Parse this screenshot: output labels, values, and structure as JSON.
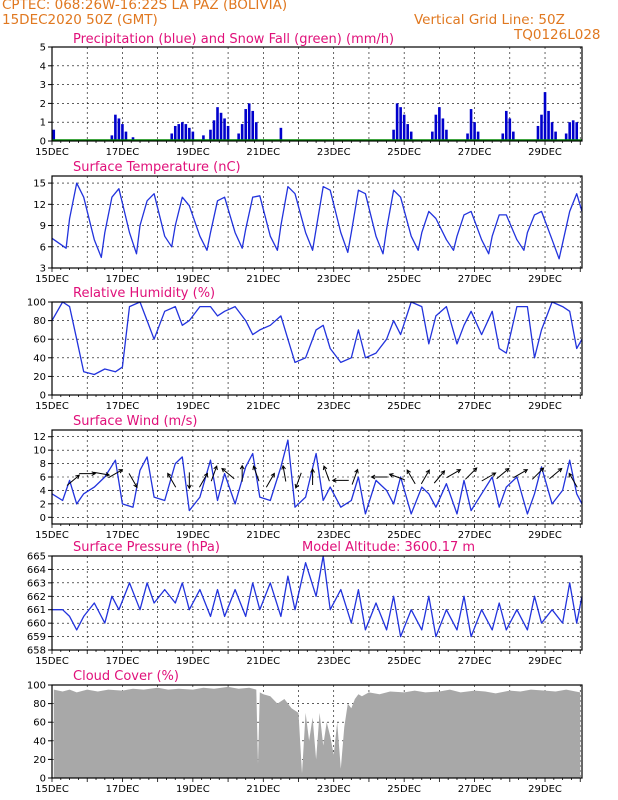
{
  "header": {
    "line1": "CPTEC:   068:26W-16:22S   LA PAZ (BOLIVIA)",
    "line2": "15DEC2020 50Z (GMT)",
    "grid_note": "Vertical Grid Line: 50Z",
    "code": "TQ0126L028"
  },
  "colors": {
    "precip": "#0000cc",
    "snow": "#008800",
    "line": "#2233dd",
    "cloud": "#a8a8a8",
    "title": "#e0107a",
    "header": "#e07820"
  },
  "chart_data": [
    {
      "id": "precip",
      "type": "bar",
      "title": "Precipitation (blue) and Snow Fall (green) (mm/h)",
      "ylim": [
        0,
        5
      ],
      "yticks": [
        0,
        1,
        2,
        3,
        4,
        5
      ],
      "xlabels": [
        "15DEC",
        "17DEC",
        "19DEC",
        "21DEC",
        "23DEC",
        "25DEC",
        "27DEC",
        "29DEC"
      ],
      "x_days": [
        15,
        17,
        19,
        21,
        23,
        25,
        27,
        29
      ],
      "xlim_days": [
        15,
        30.05
      ],
      "series": [
        {
          "name": "Precipitation",
          "points": [
            [
              15.05,
              0.6
            ],
            [
              16.7,
              0.3
            ],
            [
              16.8,
              1.4
            ],
            [
              16.9,
              1.2
            ],
            [
              17.0,
              0.9
            ],
            [
              17.1,
              0.5
            ],
            [
              17.3,
              0.2
            ],
            [
              18.4,
              0.4
            ],
            [
              18.5,
              0.8
            ],
            [
              18.6,
              0.9
            ],
            [
              18.7,
              1.0
            ],
            [
              18.8,
              0.9
            ],
            [
              18.9,
              0.7
            ],
            [
              19.0,
              0.5
            ],
            [
              19.3,
              0.3
            ],
            [
              19.5,
              0.6
            ],
            [
              19.6,
              1.1
            ],
            [
              19.7,
              1.8
            ],
            [
              19.8,
              1.5
            ],
            [
              19.9,
              1.2
            ],
            [
              20.0,
              0.8
            ],
            [
              20.3,
              0.4
            ],
            [
              20.4,
              0.9
            ],
            [
              20.5,
              1.7
            ],
            [
              20.6,
              2.0
            ],
            [
              20.7,
              1.6
            ],
            [
              20.8,
              1.0
            ],
            [
              21.5,
              0.7
            ],
            [
              24.7,
              0.6
            ],
            [
              24.8,
              2.0
            ],
            [
              24.9,
              1.8
            ],
            [
              25.0,
              1.4
            ],
            [
              25.1,
              0.9
            ],
            [
              25.2,
              0.5
            ],
            [
              25.8,
              0.5
            ],
            [
              25.9,
              1.4
            ],
            [
              26.0,
              1.8
            ],
            [
              26.1,
              1.2
            ],
            [
              26.2,
              0.6
            ],
            [
              26.8,
              0.4
            ],
            [
              26.9,
              1.7
            ],
            [
              27.0,
              1.0
            ],
            [
              27.1,
              0.5
            ],
            [
              27.8,
              0.4
            ],
            [
              27.9,
              1.6
            ],
            [
              28.0,
              1.2
            ],
            [
              28.1,
              0.5
            ],
            [
              28.8,
              0.8
            ],
            [
              28.9,
              1.4
            ],
            [
              29.0,
              2.6
            ],
            [
              29.1,
              1.6
            ],
            [
              29.2,
              1.0
            ],
            [
              29.3,
              0.5
            ],
            [
              29.6,
              0.4
            ],
            [
              29.7,
              1.0
            ],
            [
              29.8,
              1.1
            ],
            [
              29.9,
              1.0
            ]
          ]
        },
        {
          "name": "Snow Fall",
          "points": []
        }
      ]
    },
    {
      "id": "temp",
      "type": "line",
      "title": "Surface Temperature (nC)",
      "ylim": [
        3,
        16
      ],
      "yticks": [
        3,
        6,
        9,
        12,
        15
      ],
      "xlabels": [
        "15DEC",
        "17DEC",
        "19DEC",
        "21DEC",
        "23DEC",
        "25DEC",
        "27DEC",
        "29DEC"
      ],
      "x_days": [
        15,
        17,
        19,
        21,
        23,
        25,
        27,
        29
      ],
      "xlim_days": [
        15,
        30.05
      ],
      "x": [
        15.0,
        15.4,
        15.5,
        15.7,
        15.9,
        16.2,
        16.4,
        16.5,
        16.7,
        16.9,
        17.2,
        17.4,
        17.5,
        17.7,
        17.9,
        18.2,
        18.4,
        18.5,
        18.7,
        18.9,
        19.2,
        19.4,
        19.5,
        19.7,
        19.9,
        20.2,
        20.4,
        20.5,
        20.7,
        20.9,
        21.2,
        21.4,
        21.5,
        21.7,
        21.9,
        22.2,
        22.4,
        22.5,
        22.7,
        22.9,
        23.2,
        23.4,
        23.5,
        23.7,
        23.9,
        24.2,
        24.4,
        24.5,
        24.7,
        24.9,
        25.2,
        25.4,
        25.5,
        25.7,
        25.9,
        26.2,
        26.4,
        26.5,
        26.7,
        26.9,
        27.2,
        27.4,
        27.5,
        27.7,
        27.9,
        28.2,
        28.4,
        28.5,
        28.7,
        28.9,
        29.2,
        29.4,
        29.5,
        29.7,
        29.9,
        30.05
      ],
      "y": [
        7.2,
        5.8,
        10.0,
        15.0,
        13.0,
        7.0,
        4.5,
        8.0,
        13.0,
        14.2,
        8.0,
        5.0,
        9.0,
        12.5,
        13.5,
        7.5,
        6.0,
        9.0,
        13.0,
        11.8,
        7.5,
        5.5,
        8.0,
        12.5,
        13.0,
        8.0,
        5.8,
        8.5,
        13.0,
        13.2,
        7.5,
        5.5,
        9.0,
        14.5,
        13.5,
        8.0,
        5.5,
        8.5,
        14.5,
        14.0,
        8.0,
        5.2,
        8.0,
        14.0,
        13.5,
        7.5,
        5.0,
        8.5,
        14.0,
        13.0,
        7.5,
        5.5,
        8.0,
        11.0,
        10.0,
        7.0,
        5.5,
        7.5,
        10.5,
        11.0,
        7.0,
        5.0,
        7.5,
        10.5,
        10.5,
        7.0,
        5.5,
        8.0,
        10.5,
        11.0,
        7.0,
        4.3,
        6.5,
        11.0,
        13.5,
        11.0
      ]
    },
    {
      "id": "rh",
      "type": "line",
      "title": "Relative Humidity (%)",
      "ylim": [
        0,
        100
      ],
      "yticks": [
        0,
        20,
        40,
        60,
        80,
        100
      ],
      "xlabels": [
        "15DEC",
        "17DEC",
        "19DEC",
        "21DEC",
        "23DEC",
        "25DEC",
        "27DEC",
        "29DEC"
      ],
      "x_days": [
        15,
        17,
        19,
        21,
        23,
        25,
        27,
        29
      ],
      "xlim_days": [
        15,
        30.05
      ],
      "x": [
        15.0,
        15.3,
        15.5,
        15.7,
        15.9,
        16.2,
        16.5,
        16.8,
        17.0,
        17.2,
        17.5,
        17.7,
        17.9,
        18.2,
        18.5,
        18.7,
        18.9,
        19.2,
        19.5,
        19.7,
        19.9,
        20.2,
        20.5,
        20.7,
        20.9,
        21.2,
        21.5,
        21.7,
        21.9,
        22.2,
        22.5,
        22.7,
        22.9,
        23.2,
        23.5,
        23.7,
        23.9,
        24.2,
        24.5,
        24.7,
        24.9,
        25.2,
        25.5,
        25.7,
        25.9,
        26.2,
        26.5,
        26.7,
        26.9,
        27.2,
        27.5,
        27.7,
        27.9,
        28.2,
        28.5,
        28.7,
        28.9,
        29.2,
        29.5,
        29.7,
        29.9,
        30.05
      ],
      "y": [
        80,
        100,
        95,
        60,
        25,
        22,
        28,
        25,
        30,
        95,
        100,
        80,
        60,
        90,
        95,
        75,
        80,
        95,
        95,
        85,
        90,
        95,
        80,
        65,
        70,
        75,
        85,
        60,
        35,
        40,
        70,
        75,
        50,
        35,
        40,
        70,
        40,
        45,
        60,
        80,
        65,
        100,
        95,
        55,
        85,
        95,
        55,
        75,
        90,
        65,
        90,
        50,
        45,
        95,
        95,
        40,
        70,
        100,
        95,
        90,
        50,
        60
      ]
    },
    {
      "id": "wind",
      "type": "line",
      "title": "Surface Wind (m/s)",
      "ylim": [
        -1,
        13
      ],
      "yticks": [
        0,
        2,
        4,
        6,
        8,
        10,
        12
      ],
      "xlabels": [
        "15DEC",
        "17DEC",
        "19DEC",
        "21DEC",
        "23DEC",
        "25DEC",
        "27DEC",
        "29DEC"
      ],
      "x_days": [
        15,
        17,
        19,
        21,
        23,
        25,
        27,
        29
      ],
      "xlim_days": [
        15,
        30.05
      ],
      "x": [
        15.0,
        15.3,
        15.5,
        15.7,
        15.9,
        16.2,
        16.5,
        16.8,
        17.0,
        17.3,
        17.5,
        17.7,
        17.9,
        18.2,
        18.5,
        18.7,
        18.9,
        19.2,
        19.5,
        19.7,
        19.9,
        20.2,
        20.5,
        20.7,
        20.9,
        21.2,
        21.5,
        21.7,
        21.9,
        22.2,
        22.5,
        22.7,
        22.9,
        23.2,
        23.5,
        23.7,
        23.9,
        24.2,
        24.5,
        24.7,
        24.9,
        25.2,
        25.5,
        25.7,
        25.9,
        26.2,
        26.5,
        26.7,
        26.9,
        27.2,
        27.5,
        27.7,
        27.9,
        28.2,
        28.5,
        28.7,
        28.9,
        29.2,
        29.5,
        29.7,
        29.9,
        30.05
      ],
      "y": [
        3.5,
        2.5,
        5.5,
        2.0,
        3.5,
        4.5,
        6.0,
        8.5,
        2.0,
        1.5,
        7.0,
        9.0,
        3.0,
        2.5,
        8.0,
        9.0,
        1.0,
        3.0,
        8.5,
        2.5,
        6.5,
        2.0,
        7.5,
        9.5,
        3.0,
        2.5,
        7.5,
        11.5,
        1.5,
        3.0,
        9.5,
        2.5,
        4.5,
        1.5,
        2.5,
        6.0,
        0.5,
        5.5,
        4.0,
        2.0,
        6.0,
        0.5,
        4.5,
        3.5,
        1.5,
        5.0,
        0.5,
        5.5,
        1.0,
        3.5,
        6.0,
        1.5,
        4.5,
        6.0,
        0.5,
        3.5,
        7.5,
        2.0,
        4.0,
        8.5,
        3.5,
        2.0
      ],
      "arrows": [
        [
          15.6,
          5.5,
          -40
        ],
        [
          16.0,
          6.5,
          0
        ],
        [
          16.4,
          6.5,
          10
        ],
        [
          16.8,
          6.5,
          -30
        ],
        [
          17.3,
          5.5,
          60
        ],
        [
          18.4,
          5.5,
          -120
        ],
        [
          18.9,
          5.5,
          90
        ],
        [
          19.3,
          5.5,
          -60
        ],
        [
          19.6,
          6.5,
          -70
        ],
        [
          20.0,
          6.5,
          -140
        ],
        [
          20.4,
          6.5,
          -90
        ],
        [
          20.8,
          6.5,
          -110
        ],
        [
          21.2,
          5.5,
          -60
        ],
        [
          21.6,
          6.5,
          -100
        ],
        [
          22.0,
          5.5,
          110
        ],
        [
          22.4,
          6.0,
          -90
        ],
        [
          22.8,
          6.5,
          -110
        ],
        [
          23.2,
          5.5,
          180
        ],
        [
          23.6,
          6.0,
          -70
        ],
        [
          24.3,
          6.0,
          180
        ],
        [
          24.8,
          6.0,
          -160
        ],
        [
          25.2,
          6.0,
          -120
        ],
        [
          25.6,
          6.0,
          -60
        ],
        [
          26.0,
          6.0,
          -50
        ],
        [
          26.4,
          6.5,
          -30
        ],
        [
          26.9,
          6.5,
          -45
        ],
        [
          27.4,
          6.0,
          -30
        ],
        [
          27.8,
          6.5,
          -40
        ],
        [
          28.3,
          6.5,
          -30
        ],
        [
          28.8,
          6.5,
          -45
        ],
        [
          29.3,
          6.5,
          -40
        ],
        [
          29.8,
          5.5,
          -120
        ]
      ]
    },
    {
      "id": "pressure",
      "type": "line",
      "title": "Surface Pressure (hPa)",
      "subtitle": "Model Altitude: 3600.17 m",
      "ylim": [
        658,
        665
      ],
      "yticks": [
        658,
        659,
        660,
        661,
        662,
        663,
        664,
        665
      ],
      "xlabels": [
        "15DEC",
        "17DEC",
        "19DEC",
        "21DEC",
        "23DEC",
        "25DEC",
        "27DEC",
        "29DEC"
      ],
      "x_days": [
        15,
        17,
        19,
        21,
        23,
        25,
        27,
        29
      ],
      "xlim_days": [
        15,
        30.05
      ],
      "x": [
        15.0,
        15.3,
        15.5,
        15.7,
        15.9,
        16.2,
        16.5,
        16.7,
        16.9,
        17.2,
        17.5,
        17.7,
        17.9,
        18.2,
        18.5,
        18.7,
        18.9,
        19.2,
        19.5,
        19.7,
        19.9,
        20.2,
        20.5,
        20.7,
        20.9,
        21.2,
        21.5,
        21.7,
        21.9,
        22.2,
        22.5,
        22.7,
        22.9,
        23.2,
        23.5,
        23.7,
        23.9,
        24.2,
        24.5,
        24.7,
        24.9,
        25.2,
        25.5,
        25.7,
        25.9,
        26.2,
        26.5,
        26.7,
        26.9,
        27.2,
        27.5,
        27.7,
        27.9,
        28.2,
        28.5,
        28.7,
        28.9,
        29.2,
        29.5,
        29.7,
        29.9,
        30.05
      ],
      "y": [
        661.0,
        661.0,
        660.5,
        659.5,
        660.5,
        661.5,
        660.0,
        662.0,
        661.0,
        663.0,
        661.0,
        663.0,
        661.5,
        662.5,
        661.5,
        663.0,
        661.0,
        662.5,
        660.5,
        662.5,
        660.5,
        662.5,
        660.5,
        663.0,
        661.0,
        663.0,
        660.5,
        663.5,
        661.0,
        664.5,
        662.0,
        665.0,
        661.0,
        662.5,
        660.0,
        662.5,
        659.5,
        661.5,
        659.5,
        662.0,
        659.0,
        661.0,
        659.5,
        662.0,
        659.0,
        661.0,
        659.5,
        662.0,
        659.0,
        661.0,
        659.5,
        661.5,
        659.5,
        661.0,
        659.5,
        662.0,
        660.0,
        661.0,
        660.0,
        663.0,
        660.0,
        662.0
      ]
    },
    {
      "id": "cloud",
      "type": "area",
      "title": "Cloud Cover (%)",
      "ylim": [
        0,
        100
      ],
      "yticks": [
        0,
        20,
        40,
        60,
        80,
        100
      ],
      "xlabels": [
        "15DEC",
        "17DEC",
        "19DEC",
        "21DEC",
        "23DEC",
        "25DEC",
        "27DEC",
        "29DEC"
      ],
      "x_days": [
        15,
        17,
        19,
        21,
        23,
        25,
        27,
        29
      ],
      "xlim_days": [
        15,
        30.05
      ],
      "x": [
        15.05,
        15.3,
        15.5,
        15.7,
        16.0,
        16.3,
        16.6,
        17.0,
        17.3,
        17.6,
        18.0,
        18.3,
        18.6,
        19.0,
        19.3,
        19.6,
        20.0,
        20.3,
        20.6,
        20.8,
        20.85,
        20.9,
        21.0,
        21.2,
        21.4,
        21.6,
        21.8,
        22.0,
        22.1,
        22.2,
        22.3,
        22.4,
        22.5,
        22.6,
        22.7,
        22.8,
        22.9,
        23.0,
        23.1,
        23.2,
        23.3,
        23.4,
        23.5,
        23.6,
        23.7,
        23.8,
        24.0,
        24.3,
        24.6,
        25.0,
        25.3,
        25.6,
        26.0,
        26.3,
        26.6,
        27.0,
        27.3,
        27.6,
        28.0,
        28.3,
        28.6,
        29.0,
        29.3,
        29.6,
        30.0
      ],
      "y": [
        95,
        93,
        95,
        92,
        95,
        93,
        95,
        94,
        96,
        95,
        97,
        95,
        96,
        95,
        97,
        96,
        98,
        96,
        97,
        95,
        15,
        92,
        90,
        88,
        80,
        85,
        75,
        70,
        5,
        70,
        40,
        65,
        20,
        70,
        35,
        60,
        45,
        25,
        60,
        10,
        55,
        80,
        75,
        85,
        90,
        88,
        92,
        90,
        93,
        92,
        94,
        92,
        93,
        95,
        92,
        94,
        93,
        91,
        94,
        93,
        95,
        94,
        93,
        95,
        92
      ]
    }
  ]
}
